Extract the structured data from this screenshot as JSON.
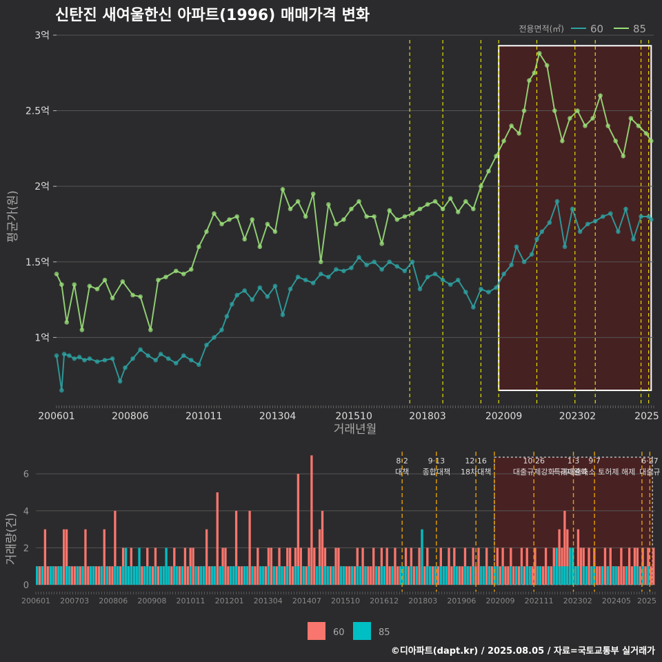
{
  "title": "신탄진 새여울한신 아파트(1996) 매매가격 변화",
  "footer": "©디아파트(dapt.kr) / 2025.08.05 / 자료=국토교통부 실거래가",
  "colors": {
    "s60_price": "#2ea3a3",
    "s85_price": "#9be07a",
    "s60_vol": "#00bfc4",
    "s85_vol": "#f8766d",
    "policy": "#e3e000",
    "policy_vol": "#e8a100",
    "highlight": "#5c1a1a"
  },
  "chart_data": [
    {
      "type": "line",
      "xlabel": "거래년월",
      "ylabel": "평균가(원)",
      "x_tick_labels": [
        "200601",
        "200806",
        "201011",
        "201304",
        "201510",
        "201803",
        "202009",
        "202302",
        "2025"
      ],
      "y_tick_labels": [
        "1억",
        "1.5억",
        "2억",
        "2.5억",
        "3억"
      ],
      "y_ticks": [
        100000000,
        150000000,
        200000000,
        250000000,
        300000000
      ],
      "ylim": [
        55000000,
        305000000
      ],
      "xlim": [
        "2006-01",
        "2025-08"
      ],
      "legend_title": "전용면적(㎡)",
      "legend_position": "top-right",
      "highlight_range": [
        "2020-07",
        "2025-07"
      ],
      "policy_dates": [
        "2017-08",
        "2018-09",
        "2019-12",
        "2020-07",
        "2021-10",
        "2023-01",
        "2023-09",
        "2025-03",
        "2025-06"
      ],
      "series": [
        {
          "name": "60",
          "points": [
            [
              "2006-01",
              0.88
            ],
            [
              "2006-03",
              0.65
            ],
            [
              "2006-04",
              0.89
            ],
            [
              "2006-06",
              0.88
            ],
            [
              "2006-08",
              0.86
            ],
            [
              "2006-10",
              0.87
            ],
            [
              "2006-12",
              0.85
            ],
            [
              "2007-02",
              0.86
            ],
            [
              "2007-05",
              0.84
            ],
            [
              "2007-08",
              0.85
            ],
            [
              "2007-11",
              0.86
            ],
            [
              "2008-02",
              0.71
            ],
            [
              "2008-04",
              0.8
            ],
            [
              "2008-07",
              0.86
            ],
            [
              "2008-10",
              0.92
            ],
            [
              "2009-01",
              0.88
            ],
            [
              "2009-04",
              0.85
            ],
            [
              "2009-06",
              0.89
            ],
            [
              "2009-09",
              0.86
            ],
            [
              "2009-12",
              0.83
            ],
            [
              "2010-03",
              0.88
            ],
            [
              "2010-06",
              0.85
            ],
            [
              "2010-09",
              0.82
            ],
            [
              "2010-12",
              0.95
            ],
            [
              "2011-03",
              1.0
            ],
            [
              "2011-06",
              1.05
            ],
            [
              "2011-08",
              1.14
            ],
            [
              "2011-10",
              1.22
            ],
            [
              "2011-12",
              1.28
            ],
            [
              "2012-03",
              1.31
            ],
            [
              "2012-06",
              1.25
            ],
            [
              "2012-09",
              1.33
            ],
            [
              "2012-12",
              1.27
            ],
            [
              "2013-03",
              1.34
            ],
            [
              "2013-06",
              1.15
            ],
            [
              "2013-09",
              1.32
            ],
            [
              "2013-12",
              1.4
            ],
            [
              "2014-03",
              1.38
            ],
            [
              "2014-06",
              1.36
            ],
            [
              "2014-09",
              1.42
            ],
            [
              "2014-12",
              1.4
            ],
            [
              "2015-03",
              1.45
            ],
            [
              "2015-06",
              1.44
            ],
            [
              "2015-09",
              1.46
            ],
            [
              "2015-12",
              1.53
            ],
            [
              "2016-03",
              1.48
            ],
            [
              "2016-06",
              1.5
            ],
            [
              "2016-09",
              1.45
            ],
            [
              "2016-12",
              1.5
            ],
            [
              "2017-03",
              1.47
            ],
            [
              "2017-06",
              1.44
            ],
            [
              "2017-09",
              1.5
            ],
            [
              "2017-12",
              1.32
            ],
            [
              "2018-03",
              1.4
            ],
            [
              "2018-06",
              1.42
            ],
            [
              "2018-09",
              1.38
            ],
            [
              "2018-12",
              1.35
            ],
            [
              "2019-03",
              1.38
            ],
            [
              "2019-06",
              1.3
            ],
            [
              "2019-09",
              1.2
            ],
            [
              "2019-12",
              1.32
            ],
            [
              "2020-03",
              1.3
            ],
            [
              "2020-06",
              1.33
            ],
            [
              "2020-09",
              1.42
            ],
            [
              "2020-12",
              1.48
            ],
            [
              "2021-02",
              1.6
            ],
            [
              "2021-05",
              1.5
            ],
            [
              "2021-08",
              1.55
            ],
            [
              "2021-10",
              1.65
            ],
            [
              "2021-12",
              1.7
            ],
            [
              "2022-03",
              1.76
            ],
            [
              "2022-06",
              1.9
            ],
            [
              "2022-09",
              1.6
            ],
            [
              "2022-12",
              1.85
            ],
            [
              "2023-03",
              1.7
            ],
            [
              "2023-06",
              1.75
            ],
            [
              "2023-09",
              1.77
            ],
            [
              "2023-12",
              1.8
            ],
            [
              "2024-03",
              1.82
            ],
            [
              "2024-06",
              1.7
            ],
            [
              "2024-09",
              1.85
            ],
            [
              "2024-12",
              1.65
            ],
            [
              "2025-03",
              1.8
            ],
            [
              "2025-06",
              1.8
            ],
            [
              "2025-07",
              1.78
            ]
          ]
        },
        {
          "name": "85",
          "points": [
            [
              "2006-01",
              1.42
            ],
            [
              "2006-03",
              1.35
            ],
            [
              "2006-05",
              1.1
            ],
            [
              "2006-08",
              1.35
            ],
            [
              "2006-11",
              1.05
            ],
            [
              "2007-02",
              1.34
            ],
            [
              "2007-05",
              1.32
            ],
            [
              "2007-08",
              1.38
            ],
            [
              "2007-11",
              1.26
            ],
            [
              "2008-03",
              1.37
            ],
            [
              "2008-07",
              1.28
            ],
            [
              "2008-10",
              1.27
            ],
            [
              "2009-02",
              1.05
            ],
            [
              "2009-05",
              1.38
            ],
            [
              "2009-08",
              1.4
            ],
            [
              "2009-12",
              1.44
            ],
            [
              "2010-03",
              1.42
            ],
            [
              "2010-06",
              1.45
            ],
            [
              "2010-09",
              1.6
            ],
            [
              "2010-12",
              1.7
            ],
            [
              "2011-03",
              1.82
            ],
            [
              "2011-06",
              1.75
            ],
            [
              "2011-09",
              1.78
            ],
            [
              "2011-12",
              1.8
            ],
            [
              "2012-03",
              1.65
            ],
            [
              "2012-06",
              1.78
            ],
            [
              "2012-09",
              1.6
            ],
            [
              "2012-12",
              1.75
            ],
            [
              "2013-03",
              1.7
            ],
            [
              "2013-06",
              1.98
            ],
            [
              "2013-09",
              1.85
            ],
            [
              "2013-12",
              1.9
            ],
            [
              "2014-03",
              1.8
            ],
            [
              "2014-06",
              1.95
            ],
            [
              "2014-09",
              1.5
            ],
            [
              "2014-12",
              1.88
            ],
            [
              "2015-03",
              1.75
            ],
            [
              "2015-06",
              1.78
            ],
            [
              "2015-09",
              1.85
            ],
            [
              "2015-12",
              1.9
            ],
            [
              "2016-03",
              1.8
            ],
            [
              "2016-06",
              1.8
            ],
            [
              "2016-09",
              1.62
            ],
            [
              "2016-12",
              1.84
            ],
            [
              "2017-03",
              1.78
            ],
            [
              "2017-06",
              1.8
            ],
            [
              "2017-09",
              1.82
            ],
            [
              "2017-12",
              1.85
            ],
            [
              "2018-03",
              1.88
            ],
            [
              "2018-06",
              1.9
            ],
            [
              "2018-09",
              1.85
            ],
            [
              "2018-12",
              1.92
            ],
            [
              "2019-03",
              1.83
            ],
            [
              "2019-06",
              1.9
            ],
            [
              "2019-09",
              1.85
            ],
            [
              "2019-12",
              2.0
            ],
            [
              "2020-03",
              2.1
            ],
            [
              "2020-06",
              2.2
            ],
            [
              "2020-09",
              2.3
            ],
            [
              "2020-12",
              2.4
            ],
            [
              "2021-03",
              2.35
            ],
            [
              "2021-05",
              2.5
            ],
            [
              "2021-07",
              2.7
            ],
            [
              "2021-09",
              2.75
            ],
            [
              "2021-11",
              2.88
            ],
            [
              "2022-02",
              2.8
            ],
            [
              "2022-05",
              2.5
            ],
            [
              "2022-08",
              2.3
            ],
            [
              "2022-11",
              2.45
            ],
            [
              "2023-02",
              2.5
            ],
            [
              "2023-05",
              2.4
            ],
            [
              "2023-08",
              2.45
            ],
            [
              "2023-11",
              2.6
            ],
            [
              "2024-02",
              2.4
            ],
            [
              "2024-05",
              2.3
            ],
            [
              "2024-08",
              2.2
            ],
            [
              "2024-11",
              2.45
            ],
            [
              "2025-02",
              2.4
            ],
            [
              "2025-05",
              2.35
            ],
            [
              "2025-07",
              2.3
            ]
          ]
        }
      ]
    },
    {
      "type": "bar",
      "ylabel": "거래량(건)",
      "y_tick_labels": [
        "0",
        "2",
        "4",
        "6"
      ],
      "ylim": [
        0,
        7.2
      ],
      "x_tick_labels": [
        "200601",
        "200703",
        "200806",
        "200908",
        "201011",
        "201201",
        "201304",
        "201407",
        "201510",
        "201612",
        "201803",
        "201906",
        "202009",
        "202111",
        "202302",
        "202405",
        "2025"
      ],
      "legend": [
        "60",
        "85"
      ],
      "highlight_range": [
        "2020-07",
        "2025-07"
      ],
      "policy_labels": [
        {
          "date": "2017-08",
          "text": "8·2 대책"
        },
        {
          "date": "2018-09",
          "text": "9·13 종합대책"
        },
        {
          "date": "2019-12",
          "text": "12·16 18차대책"
        },
        {
          "date": "2020-07",
          "text": ""
        },
        {
          "date": "2021-10",
          "text": "10·26 대출규제강화"
        },
        {
          "date": "2023-01",
          "text": "1·3 규제완화"
        },
        {
          "date": "2023-09",
          "text": "9·7 특례대출축소 토허제 해제"
        },
        {
          "date": "2025-03",
          "text": ""
        },
        {
          "date": "2025-06",
          "text": "6·27 대출규"
        }
      ],
      "values_60": [
        1,
        0,
        1,
        0,
        0,
        1,
        1,
        0,
        1,
        1,
        0,
        1,
        1,
        0,
        0,
        1,
        0,
        1,
        0,
        0,
        1,
        1,
        0,
        0,
        1,
        0,
        1,
        0,
        0,
        1,
        1,
        0,
        1,
        2,
        1,
        1,
        1,
        1,
        2,
        0,
        1,
        1,
        1,
        0,
        1,
        0,
        1,
        1,
        2,
        1,
        0,
        1,
        1,
        0,
        1,
        0,
        0,
        1,
        0,
        1,
        0,
        1,
        1,
        0,
        0,
        1,
        1,
        0,
        1,
        1,
        0,
        0,
        1,
        1,
        1,
        0,
        0,
        1,
        1,
        0,
        1,
        0,
        0,
        1,
        1,
        0,
        1,
        0,
        1,
        0,
        1,
        1,
        0,
        1,
        0,
        0,
        1,
        1,
        0,
        1,
        0,
        1,
        0,
        0,
        1,
        1,
        0,
        1,
        1,
        0,
        1,
        0,
        0,
        1,
        1,
        0,
        0,
        1,
        0,
        1,
        1,
        0,
        1,
        0,
        0,
        0,
        1,
        0,
        1,
        1,
        0,
        0,
        1,
        0,
        0,
        1,
        1,
        1,
        0,
        1,
        0,
        1,
        0,
        3,
        0,
        1,
        1,
        0,
        1,
        0,
        1,
        1,
        1,
        0,
        0,
        1,
        1,
        0,
        0,
        1,
        1,
        0,
        1,
        0,
        0,
        1,
        1,
        0,
        1,
        0,
        1,
        1,
        0,
        1,
        0,
        0,
        1,
        0,
        1,
        0,
        1,
        0,
        1,
        1,
        0,
        0,
        1,
        1,
        0,
        0,
        1,
        0,
        1,
        2,
        1,
        1,
        1,
        1,
        2,
        2,
        1,
        1,
        0,
        1,
        1,
        0,
        1,
        1,
        0,
        0,
        1,
        0,
        1,
        0,
        1,
        1,
        0,
        0,
        0,
        1,
        0,
        0,
        1,
        1,
        0,
        1,
        0,
        1,
        0,
        0
      ],
      "values_85": [
        1,
        1,
        1,
        3,
        1,
        1,
        1,
        1,
        1,
        1,
        3,
        3,
        1,
        1,
        1,
        1,
        1,
        1,
        3,
        1,
        1,
        1,
        1,
        1,
        1,
        3,
        1,
        1,
        1,
        4,
        1,
        1,
        2,
        1,
        1,
        2,
        1,
        1,
        1,
        1,
        1,
        2,
        1,
        1,
        2,
        1,
        1,
        1,
        1,
        1,
        1,
        2,
        1,
        1,
        1,
        2,
        1,
        2,
        2,
        1,
        1,
        1,
        1,
        3,
        1,
        1,
        1,
        5,
        1,
        2,
        2,
        1,
        1,
        1,
        4,
        1,
        1,
        1,
        1,
        4,
        1,
        1,
        2,
        1,
        1,
        1,
        2,
        2,
        1,
        1,
        2,
        1,
        1,
        2,
        2,
        1,
        2,
        6,
        2,
        1,
        1,
        2,
        7,
        2,
        1,
        3,
        4,
        2,
        1,
        1,
        1,
        2,
        2,
        1,
        1,
        1,
        1,
        1,
        1,
        2,
        1,
        2,
        1,
        1,
        1,
        2,
        1,
        1,
        2,
        1,
        2,
        1,
        1,
        2,
        1,
        1,
        1,
        2,
        1,
        2,
        1,
        1,
        2,
        1,
        1,
        2,
        1,
        1,
        1,
        1,
        2,
        1,
        1,
        2,
        1,
        2,
        1,
        1,
        1,
        2,
        1,
        1,
        2,
        1,
        2,
        1,
        1,
        2,
        1,
        1,
        1,
        2,
        1,
        2,
        1,
        1,
        2,
        1,
        1,
        1,
        2,
        1,
        2,
        1,
        1,
        2,
        1,
        1,
        1,
        2,
        1,
        1,
        2,
        1,
        3,
        2,
        4,
        3,
        2,
        1,
        1,
        3,
        2,
        2,
        1,
        2,
        1,
        2,
        1,
        1,
        1,
        2,
        1,
        2,
        1,
        1,
        1,
        2,
        1,
        1,
        2,
        1,
        2,
        2,
        1,
        2,
        1,
        2,
        1,
        2
      ]
    }
  ]
}
